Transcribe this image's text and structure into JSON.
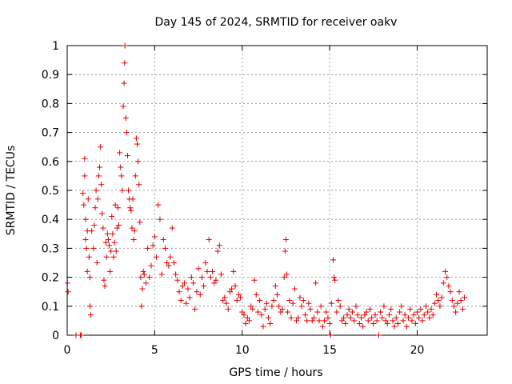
{
  "chart_data": {
    "type": "scatter",
    "title": "Day 145 of 2024, SRMTID for receiver oakv",
    "xlabel": "GPS time / hours",
    "ylabel": "SRMTID / TECUs",
    "xlim": [
      0,
      24
    ],
    "ylim": [
      0,
      1
    ],
    "grid": true,
    "marker": "plus",
    "marker_color": "#e00000",
    "x_ticks": [
      0,
      5,
      10,
      15,
      20
    ],
    "x_tick_labels": [
      "0",
      "5",
      "10",
      "15",
      "20"
    ],
    "y_ticks": [
      0,
      0.1,
      0.2,
      0.3,
      0.4,
      0.5,
      0.6,
      0.7,
      0.8,
      0.9,
      1
    ],
    "y_tick_labels": [
      "0",
      "0.1",
      "0.2",
      "0.3",
      "0.4",
      "0.5",
      "0.6",
      "0.7",
      "0.8",
      "0.9",
      "1"
    ],
    "series": [
      {
        "name": "SRMTID",
        "points": [
          [
            0.02,
            0.18
          ],
          [
            0.05,
            0.15
          ],
          [
            0.5,
            0.0
          ],
          [
            0.75,
            0.0
          ],
          [
            0.8,
            0.0
          ],
          [
            0.9,
            0.49
          ],
          [
            0.95,
            0.45
          ],
          [
            1.0,
            0.61
          ],
          [
            1.0,
            0.55
          ],
          [
            1.05,
            0.4
          ],
          [
            1.05,
            0.33
          ],
          [
            1.1,
            0.3
          ],
          [
            1.15,
            0.36
          ],
          [
            1.15,
            0.22
          ],
          [
            1.2,
            0.47
          ],
          [
            1.25,
            0.27
          ],
          [
            1.3,
            0.2
          ],
          [
            1.3,
            0.1
          ],
          [
            1.35,
            0.07
          ],
          [
            1.4,
            0.36
          ],
          [
            1.5,
            0.3
          ],
          [
            1.55,
            0.38
          ],
          [
            1.6,
            0.44
          ],
          [
            1.65,
            0.5
          ],
          [
            1.7,
            0.25
          ],
          [
            1.75,
            0.47
          ],
          [
            1.8,
            0.55
          ],
          [
            1.85,
            0.58
          ],
          [
            1.9,
            0.65
          ],
          [
            1.95,
            0.52
          ],
          [
            2.0,
            0.42
          ],
          [
            2.05,
            0.37
          ],
          [
            2.1,
            0.19
          ],
          [
            2.15,
            0.17
          ],
          [
            2.2,
            0.32
          ],
          [
            2.25,
            0.27
          ],
          [
            2.3,
            0.35
          ],
          [
            2.35,
            0.33
          ],
          [
            2.4,
            0.31
          ],
          [
            2.45,
            0.22
          ],
          [
            2.5,
            0.29
          ],
          [
            2.55,
            0.41
          ],
          [
            2.6,
            0.35
          ],
          [
            2.65,
            0.27
          ],
          [
            2.7,
            0.32
          ],
          [
            2.75,
            0.45
          ],
          [
            2.8,
            0.29
          ],
          [
            2.85,
            0.37
          ],
          [
            2.9,
            0.44
          ],
          [
            2.95,
            0.38
          ],
          [
            3.0,
            0.63
          ],
          [
            3.05,
            0.58
          ],
          [
            3.1,
            0.55
          ],
          [
            3.15,
            0.5
          ],
          [
            3.2,
            0.79
          ],
          [
            3.25,
            0.87
          ],
          [
            3.28,
            0.94
          ],
          [
            3.3,
            1.0
          ],
          [
            3.35,
            0.75
          ],
          [
            3.4,
            0.7
          ],
          [
            3.45,
            0.62
          ],
          [
            3.5,
            0.5
          ],
          [
            3.55,
            0.47
          ],
          [
            3.6,
            0.44
          ],
          [
            3.65,
            0.43
          ],
          [
            3.7,
            0.37
          ],
          [
            3.75,
            0.47
          ],
          [
            3.8,
            0.33
          ],
          [
            3.85,
            0.36
          ],
          [
            3.9,
            0.55
          ],
          [
            3.95,
            0.68
          ],
          [
            4.0,
            0.66
          ],
          [
            4.05,
            0.6
          ],
          [
            4.1,
            0.52
          ],
          [
            4.15,
            0.39
          ],
          [
            4.2,
            0.2
          ],
          [
            4.25,
            0.1
          ],
          [
            4.3,
            0.16
          ],
          [
            4.35,
            0.22
          ],
          [
            4.4,
            0.21
          ],
          [
            4.5,
            0.18
          ],
          [
            4.6,
            0.3
          ],
          [
            4.7,
            0.2
          ],
          [
            4.8,
            0.24
          ],
          [
            4.9,
            0.31
          ],
          [
            5.0,
            0.34
          ],
          [
            5.1,
            0.27
          ],
          [
            5.2,
            0.45
          ],
          [
            5.3,
            0.4
          ],
          [
            5.4,
            0.21
          ],
          [
            5.5,
            0.33
          ],
          [
            5.6,
            0.3
          ],
          [
            5.7,
            0.25
          ],
          [
            5.8,
            0.24
          ],
          [
            5.9,
            0.27
          ],
          [
            6.0,
            0.37
          ],
          [
            6.1,
            0.25
          ],
          [
            6.2,
            0.21
          ],
          [
            6.3,
            0.19
          ],
          [
            6.4,
            0.15
          ],
          [
            6.5,
            0.12
          ],
          [
            6.6,
            0.17
          ],
          [
            6.7,
            0.18
          ],
          [
            6.8,
            0.11
          ],
          [
            6.9,
            0.16
          ],
          [
            7.0,
            0.13
          ],
          [
            7.1,
            0.2
          ],
          [
            7.2,
            0.18
          ],
          [
            7.3,
            0.09
          ],
          [
            7.4,
            0.15
          ],
          [
            7.5,
            0.23
          ],
          [
            7.6,
            0.14
          ],
          [
            7.7,
            0.2
          ],
          [
            7.8,
            0.17
          ],
          [
            7.9,
            0.25
          ],
          [
            8.0,
            0.22
          ],
          [
            8.1,
            0.33
          ],
          [
            8.2,
            0.2
          ],
          [
            8.3,
            0.22
          ],
          [
            8.4,
            0.18
          ],
          [
            8.5,
            0.19
          ],
          [
            8.6,
            0.29
          ],
          [
            8.7,
            0.31
          ],
          [
            8.8,
            0.21
          ],
          [
            8.9,
            0.12
          ],
          [
            9.0,
            0.13
          ],
          [
            9.1,
            0.11
          ],
          [
            9.2,
            0.09
          ],
          [
            9.3,
            0.15
          ],
          [
            9.4,
            0.16
          ],
          [
            9.5,
            0.22
          ],
          [
            9.6,
            0.17
          ],
          [
            9.7,
            0.12
          ],
          [
            9.8,
            0.14
          ],
          [
            9.9,
            0.13
          ],
          [
            10.0,
            0.08
          ],
          [
            10.1,
            0.07
          ],
          [
            10.2,
            0.04
          ],
          [
            10.3,
            0.06
          ],
          [
            10.4,
            0.05
          ],
          [
            10.5,
            0.1
          ],
          [
            10.6,
            0.09
          ],
          [
            10.7,
            0.19
          ],
          [
            10.8,
            0.14
          ],
          [
            10.9,
            0.08
          ],
          [
            11.0,
            0.12
          ],
          [
            11.1,
            0.07
          ],
          [
            11.2,
            0.03
          ],
          [
            11.3,
            0.09
          ],
          [
            11.4,
            0.11
          ],
          [
            11.5,
            0.06
          ],
          [
            11.6,
            0.04
          ],
          [
            11.7,
            0.1
          ],
          [
            11.8,
            0.12
          ],
          [
            11.9,
            0.17
          ],
          [
            12.0,
            0.14
          ],
          [
            12.1,
            0.1
          ],
          [
            12.2,
            0.08
          ],
          [
            12.3,
            0.09
          ],
          [
            12.4,
            0.2
          ],
          [
            12.45,
            0.29
          ],
          [
            12.5,
            0.33
          ],
          [
            12.55,
            0.21
          ],
          [
            12.6,
            0.08
          ],
          [
            12.7,
            0.12
          ],
          [
            12.8,
            0.06
          ],
          [
            12.9,
            0.11
          ],
          [
            13.0,
            0.16
          ],
          [
            13.1,
            0.05
          ],
          [
            13.2,
            0.06
          ],
          [
            13.3,
            0.13
          ],
          [
            13.4,
            0.1
          ],
          [
            13.5,
            0.12
          ],
          [
            13.6,
            0.07
          ],
          [
            13.7,
            0.05
          ],
          [
            13.8,
            0.11
          ],
          [
            13.9,
            0.09
          ],
          [
            14.0,
            0.05
          ],
          [
            14.1,
            0.06
          ],
          [
            14.2,
            0.18
          ],
          [
            14.3,
            0.08
          ],
          [
            14.4,
            0.05
          ],
          [
            14.5,
            0.1
          ],
          [
            14.6,
            0.03
          ],
          [
            14.7,
            0.05
          ],
          [
            14.8,
            0.08
          ],
          [
            14.9,
            0.06
          ],
          [
            15.0,
            0.04
          ],
          [
            15.05,
            0.0
          ],
          [
            15.1,
            0.11
          ],
          [
            15.2,
            0.26
          ],
          [
            15.25,
            0.2
          ],
          [
            15.3,
            0.19
          ],
          [
            15.4,
            0.08
          ],
          [
            15.5,
            0.12
          ],
          [
            15.6,
            0.1
          ],
          [
            15.7,
            0.05
          ],
          [
            15.8,
            0.06
          ],
          [
            15.9,
            0.04
          ],
          [
            16.0,
            0.07
          ],
          [
            16.1,
            0.09
          ],
          [
            16.2,
            0.06
          ],
          [
            16.3,
            0.08
          ],
          [
            16.4,
            0.05
          ],
          [
            16.5,
            0.1
          ],
          [
            16.6,
            0.07
          ],
          [
            16.7,
            0.04
          ],
          [
            16.8,
            0.06
          ],
          [
            16.9,
            0.03
          ],
          [
            17.0,
            0.07
          ],
          [
            17.1,
            0.08
          ],
          [
            17.2,
            0.05
          ],
          [
            17.3,
            0.09
          ],
          [
            17.4,
            0.06
          ],
          [
            17.5,
            0.04
          ],
          [
            17.6,
            0.07
          ],
          [
            17.7,
            0.05
          ],
          [
            17.8,
            0.0
          ],
          [
            17.9,
            0.08
          ],
          [
            18.0,
            0.06
          ],
          [
            18.1,
            0.1
          ],
          [
            18.2,
            0.05
          ],
          [
            18.3,
            0.04
          ],
          [
            18.4,
            0.07
          ],
          [
            18.5,
            0.09
          ],
          [
            18.6,
            0.05
          ],
          [
            18.7,
            0.03
          ],
          [
            18.8,
            0.06
          ],
          [
            18.9,
            0.04
          ],
          [
            19.0,
            0.08
          ],
          [
            19.1,
            0.1
          ],
          [
            19.2,
            0.05
          ],
          [
            19.3,
            0.07
          ],
          [
            19.4,
            0.03
          ],
          [
            19.5,
            0.06
          ],
          [
            19.6,
            0.09
          ],
          [
            19.7,
            0.05
          ],
          [
            19.8,
            0.07
          ],
          [
            19.9,
            0.04
          ],
          [
            20.0,
            0.08
          ],
          [
            20.1,
            0.06
          ],
          [
            20.2,
            0.09
          ],
          [
            20.3,
            0.05
          ],
          [
            20.4,
            0.07
          ],
          [
            20.5,
            0.1
          ],
          [
            20.6,
            0.08
          ],
          [
            20.7,
            0.06
          ],
          [
            20.8,
            0.09
          ],
          [
            20.9,
            0.07
          ],
          [
            21.0,
            0.11
          ],
          [
            21.1,
            0.14
          ],
          [
            21.2,
            0.12
          ],
          [
            21.3,
            0.1
          ],
          [
            21.4,
            0.13
          ],
          [
            21.5,
            0.18
          ],
          [
            21.6,
            0.22
          ],
          [
            21.7,
            0.2
          ],
          [
            21.8,
            0.17
          ],
          [
            21.9,
            0.15
          ],
          [
            22.0,
            0.12
          ],
          [
            22.1,
            0.1
          ],
          [
            22.2,
            0.08
          ],
          [
            22.3,
            0.11
          ],
          [
            22.4,
            0.15
          ],
          [
            22.5,
            0.12
          ],
          [
            22.6,
            0.09
          ],
          [
            22.7,
            0.13
          ]
        ]
      }
    ]
  }
}
